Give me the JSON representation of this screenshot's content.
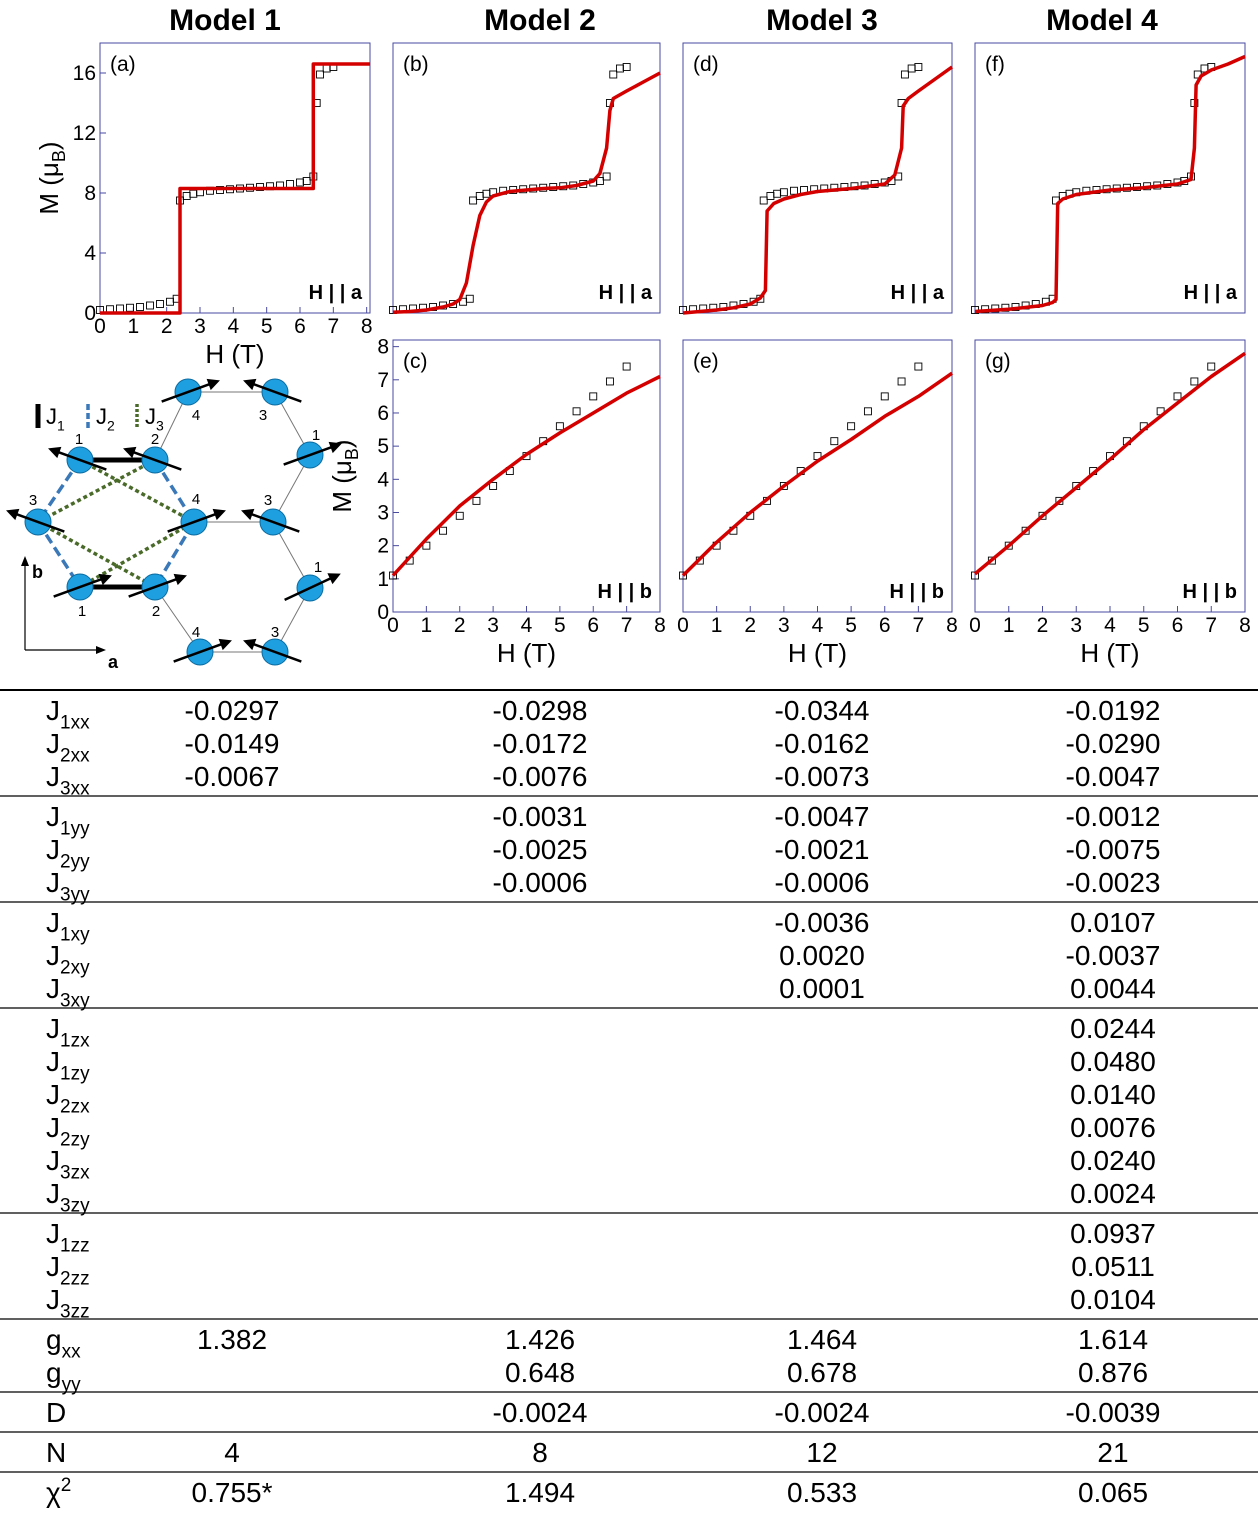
{
  "column_headers": [
    "Model 1",
    "Model 2",
    "Model 3",
    "Model 4"
  ],
  "chart_data": [
    {
      "type": "line",
      "panel_label": "(a)",
      "annotation": "H | | a",
      "xlabel": "H (T)",
      "ylabel": [
        "M (μ",
        "B",
        ")"
      ],
      "xlim": [
        0,
        8.1
      ],
      "ylim": [
        0,
        18
      ],
      "xticks": [
        0,
        1,
        2,
        3,
        4,
        5,
        6,
        7,
        8
      ],
      "yticks": [
        0,
        4,
        8,
        12,
        16
      ],
      "series": [
        {
          "color": "#000000",
          "marker": "square",
          "x": [
            0,
            0.3,
            0.6,
            0.9,
            1.2,
            1.5,
            1.8,
            2.1,
            2.3,
            2.4,
            2.6,
            2.8,
            3.0,
            3.3,
            3.6,
            3.9,
            4.2,
            4.5,
            4.8,
            5.1,
            5.4,
            5.7,
            6.0,
            6.2,
            6.4,
            6.5,
            6.6,
            6.8,
            7.0
          ],
          "values": [
            0.2,
            0.25,
            0.3,
            0.35,
            0.4,
            0.5,
            0.6,
            0.75,
            0.95,
            7.5,
            7.8,
            7.95,
            8.05,
            8.15,
            8.2,
            8.25,
            8.3,
            8.35,
            8.4,
            8.45,
            8.5,
            8.6,
            8.7,
            8.8,
            9.1,
            14.0,
            15.9,
            16.3,
            16.4
          ]
        },
        {
          "color": "#d40000",
          "x": [
            0,
            2.4,
            2.4,
            6.4,
            6.4,
            8.1
          ],
          "values": [
            0,
            0,
            8.3,
            8.3,
            16.6,
            16.6
          ]
        }
      ]
    },
    {
      "type": "line",
      "panel_label": "(b)",
      "annotation": "H | | a",
      "xlim": [
        0,
        8
      ],
      "ylim": [
        0,
        18
      ],
      "series": [
        {
          "color": "#000000",
          "marker": "square",
          "x": [
            0,
            0.3,
            0.6,
            0.9,
            1.2,
            1.5,
            1.8,
            2.1,
            2.3,
            2.4,
            2.6,
            2.8,
            3.0,
            3.3,
            3.6,
            3.9,
            4.2,
            4.5,
            4.8,
            5.1,
            5.4,
            5.7,
            6.0,
            6.2,
            6.4,
            6.5,
            6.6,
            6.8,
            7.0
          ],
          "values": [
            0.2,
            0.25,
            0.3,
            0.35,
            0.4,
            0.5,
            0.6,
            0.75,
            0.95,
            7.5,
            7.8,
            7.95,
            8.05,
            8.15,
            8.2,
            8.25,
            8.3,
            8.35,
            8.4,
            8.45,
            8.5,
            8.6,
            8.7,
            8.8,
            9.1,
            14.0,
            15.9,
            16.3,
            16.4
          ]
        },
        {
          "color": "#d40000",
          "x": [
            0,
            0.5,
            1,
            1.5,
            1.8,
            2.0,
            2.2,
            2.4,
            2.6,
            2.8,
            3,
            3.5,
            4,
            4.5,
            5,
            5.5,
            6,
            6.2,
            6.4,
            6.5,
            6.6,
            7,
            7.5,
            8
          ],
          "values": [
            0.05,
            0.1,
            0.2,
            0.4,
            0.6,
            0.9,
            2.0,
            4.5,
            6.5,
            7.4,
            7.8,
            8.1,
            8.2,
            8.3,
            8.35,
            8.5,
            8.8,
            9.3,
            11,
            13.5,
            14.3,
            14.8,
            15.4,
            16.0
          ]
        }
      ]
    },
    {
      "type": "line",
      "panel_label": "(c)",
      "annotation": "H | | b",
      "xlabel": "H (T)",
      "ylabel": [
        "M (μ",
        "B",
        ")"
      ],
      "xlim": [
        0,
        8
      ],
      "ylim": [
        0,
        8.2
      ],
      "xticks": [
        0,
        1,
        2,
        3,
        4,
        5,
        6,
        7,
        8
      ],
      "yticks": [
        0,
        1,
        2,
        3,
        4,
        5,
        6,
        7,
        8
      ],
      "series": [
        {
          "color": "#000000",
          "marker": "square",
          "x": [
            0,
            0.5,
            1,
            1.5,
            2,
            2.5,
            3,
            3.5,
            4,
            4.5,
            5,
            5.5,
            6,
            6.5,
            7
          ],
          "values": [
            1.1,
            1.55,
            2.0,
            2.45,
            2.9,
            3.35,
            3.8,
            4.25,
            4.7,
            5.15,
            5.6,
            6.05,
            6.5,
            6.95,
            7.4
          ]
        },
        {
          "color": "#d40000",
          "x": [
            0,
            1,
            2,
            3,
            4,
            5,
            6,
            7,
            8
          ],
          "values": [
            1.1,
            2.2,
            3.2,
            4.0,
            4.75,
            5.4,
            6.0,
            6.6,
            7.1
          ]
        }
      ]
    },
    {
      "type": "line",
      "panel_label": "(d)",
      "annotation": "H | | a",
      "xlim": [
        0,
        8
      ],
      "ylim": [
        0,
        18
      ],
      "series": [
        {
          "color": "#000000",
          "marker": "square",
          "x": [
            0,
            0.3,
            0.6,
            0.9,
            1.2,
            1.5,
            1.8,
            2.1,
            2.3,
            2.4,
            2.6,
            2.8,
            3.0,
            3.3,
            3.6,
            3.9,
            4.2,
            4.5,
            4.8,
            5.1,
            5.4,
            5.7,
            6.0,
            6.2,
            6.4,
            6.5,
            6.6,
            6.8,
            7.0
          ],
          "values": [
            0.2,
            0.25,
            0.3,
            0.35,
            0.4,
            0.5,
            0.6,
            0.75,
            0.95,
            7.5,
            7.8,
            7.95,
            8.05,
            8.15,
            8.2,
            8.25,
            8.3,
            8.35,
            8.4,
            8.45,
            8.5,
            8.6,
            8.7,
            8.8,
            9.1,
            14.0,
            15.9,
            16.3,
            16.4
          ]
        },
        {
          "color": "#d40000",
          "x": [
            0,
            1,
            1.5,
            2,
            2.3,
            2.45,
            2.5,
            2.7,
            3,
            3.5,
            4,
            5,
            6,
            6.3,
            6.5,
            6.55,
            6.7,
            7,
            7.5,
            8
          ],
          "values": [
            0,
            0.2,
            0.35,
            0.6,
            1.0,
            1.5,
            6.8,
            7.3,
            7.6,
            7.9,
            8.1,
            8.3,
            8.6,
            9.2,
            11,
            13.8,
            14.3,
            14.8,
            15.6,
            16.4
          ]
        }
      ]
    },
    {
      "type": "line",
      "panel_label": "(e)",
      "annotation": "H | | b",
      "xlabel": "H (T)",
      "xlim": [
        0,
        8
      ],
      "ylim": [
        0,
        8.2
      ],
      "xticks": [
        0,
        1,
        2,
        3,
        4,
        5,
        6,
        7,
        8
      ],
      "series": [
        {
          "color": "#000000",
          "marker": "square",
          "x": [
            0,
            0.5,
            1,
            1.5,
            2,
            2.5,
            3,
            3.5,
            4,
            4.5,
            5,
            5.5,
            6,
            6.5,
            7
          ],
          "values": [
            1.1,
            1.55,
            2.0,
            2.45,
            2.9,
            3.35,
            3.8,
            4.25,
            4.7,
            5.15,
            5.6,
            6.05,
            6.5,
            6.95,
            7.4
          ]
        },
        {
          "color": "#d40000",
          "x": [
            0,
            1,
            2,
            3,
            4,
            5,
            6,
            7,
            8
          ],
          "values": [
            1.1,
            2.1,
            3.0,
            3.8,
            4.55,
            5.2,
            5.9,
            6.5,
            7.2
          ]
        }
      ]
    },
    {
      "type": "line",
      "panel_label": "(f)",
      "annotation": "H | | a",
      "xlim": [
        0,
        8
      ],
      "ylim": [
        0,
        18
      ],
      "series": [
        {
          "color": "#000000",
          "marker": "square",
          "x": [
            0,
            0.3,
            0.6,
            0.9,
            1.2,
            1.5,
            1.8,
            2.1,
            2.3,
            2.4,
            2.6,
            2.8,
            3.0,
            3.3,
            3.6,
            3.9,
            4.2,
            4.5,
            4.8,
            5.1,
            5.4,
            5.7,
            6.0,
            6.2,
            6.4,
            6.5,
            6.6,
            6.8,
            7.0
          ],
          "values": [
            0.2,
            0.25,
            0.3,
            0.35,
            0.4,
            0.5,
            0.6,
            0.75,
            0.95,
            7.5,
            7.8,
            7.95,
            8.05,
            8.15,
            8.2,
            8.25,
            8.3,
            8.35,
            8.4,
            8.45,
            8.5,
            8.6,
            8.7,
            8.8,
            9.1,
            14.0,
            15.9,
            16.3,
            16.4
          ]
        },
        {
          "color": "#d40000",
          "x": [
            0,
            1,
            2,
            2.3,
            2.4,
            2.45,
            2.6,
            3,
            4,
            5,
            6,
            6.4,
            6.5,
            6.55,
            6.7,
            7,
            7.5,
            8
          ],
          "values": [
            0.1,
            0.25,
            0.5,
            0.7,
            0.9,
            7.3,
            7.6,
            7.9,
            8.2,
            8.35,
            8.6,
            8.9,
            11,
            15.2,
            15.8,
            16.2,
            16.6,
            17.1
          ]
        }
      ]
    },
    {
      "type": "line",
      "panel_label": "(g)",
      "annotation": "H | | b",
      "xlabel": "H (T)",
      "xlim": [
        0,
        8
      ],
      "ylim": [
        0,
        8.2
      ],
      "xticks": [
        0,
        1,
        2,
        3,
        4,
        5,
        6,
        7,
        8
      ],
      "series": [
        {
          "color": "#000000",
          "marker": "square",
          "x": [
            0,
            0.5,
            1,
            1.5,
            2,
            2.5,
            3,
            3.5,
            4,
            4.5,
            5,
            5.5,
            6,
            6.5,
            7
          ],
          "values": [
            1.1,
            1.55,
            2.0,
            2.45,
            2.9,
            3.35,
            3.8,
            4.25,
            4.7,
            5.15,
            5.6,
            6.05,
            6.5,
            6.95,
            7.4
          ]
        },
        {
          "color": "#d40000",
          "x": [
            0,
            1,
            2,
            3,
            4,
            5,
            6,
            7,
            8
          ],
          "values": [
            1.15,
            2.0,
            2.9,
            3.75,
            4.6,
            5.5,
            6.3,
            7.1,
            7.8
          ]
        }
      ]
    }
  ],
  "diagram": {
    "bond_labels": [
      {
        "base": "J",
        "sub": "1"
      },
      {
        "base": "J",
        "sub": "2"
      },
      {
        "base": "J",
        "sub": "3"
      }
    ],
    "site_labels": [
      "4",
      "3",
      "1",
      "2",
      "1",
      "3",
      "4",
      "3",
      "1",
      "1",
      "2",
      "4",
      "3"
    ],
    "axis_labels": [
      "b",
      "a"
    ]
  },
  "table": {
    "groups": [
      [
        {
          "label": {
            "base": "J",
            "sub": "1xx"
          },
          "values": [
            "-0.0297",
            "-0.0298",
            "-0.0344",
            "-0.0192"
          ]
        },
        {
          "label": {
            "base": "J",
            "sub": "2xx"
          },
          "values": [
            "-0.0149",
            "-0.0172",
            "-0.0162",
            "-0.0290"
          ]
        },
        {
          "label": {
            "base": "J",
            "sub": "3xx"
          },
          "values": [
            "-0.0067",
            "-0.0076",
            "-0.0073",
            "-0.0047"
          ]
        }
      ],
      [
        {
          "label": {
            "base": "J",
            "sub": "1yy"
          },
          "values": [
            null,
            "-0.0031",
            "-0.0047",
            "-0.0012"
          ]
        },
        {
          "label": {
            "base": "J",
            "sub": "2yy"
          },
          "values": [
            null,
            "-0.0025",
            "-0.0021",
            "-0.0075"
          ]
        },
        {
          "label": {
            "base": "J",
            "sub": "3yy"
          },
          "values": [
            null,
            "-0.0006",
            "-0.0006",
            "-0.0023"
          ]
        }
      ],
      [
        {
          "label": {
            "base": "J",
            "sub": "1xy"
          },
          "values": [
            null,
            null,
            "-0.0036",
            "0.0107"
          ]
        },
        {
          "label": {
            "base": "J",
            "sub": "2xy"
          },
          "values": [
            null,
            null,
            "0.0020",
            "-0.0037"
          ]
        },
        {
          "label": {
            "base": "J",
            "sub": "3xy"
          },
          "values": [
            null,
            null,
            "0.0001",
            "0.0044"
          ]
        }
      ],
      [
        {
          "label": {
            "base": "J",
            "sub": "1zx"
          },
          "values": [
            null,
            null,
            null,
            "0.0244"
          ]
        },
        {
          "label": {
            "base": "J",
            "sub": "1zy"
          },
          "values": [
            null,
            null,
            null,
            "0.0480"
          ]
        },
        {
          "label": {
            "base": "J",
            "sub": "2zx"
          },
          "values": [
            null,
            null,
            null,
            "0.0140"
          ]
        },
        {
          "label": {
            "base": "J",
            "sub": "2zy"
          },
          "values": [
            null,
            null,
            null,
            "0.0076"
          ]
        },
        {
          "label": {
            "base": "J",
            "sub": "3zx"
          },
          "values": [
            null,
            null,
            null,
            "0.0240"
          ]
        },
        {
          "label": {
            "base": "J",
            "sub": "3zy"
          },
          "values": [
            null,
            null,
            null,
            "0.0024"
          ]
        }
      ],
      [
        {
          "label": {
            "base": "J",
            "sub": "1zz"
          },
          "values": [
            null,
            null,
            null,
            "0.0937"
          ]
        },
        {
          "label": {
            "base": "J",
            "sub": "2zz"
          },
          "values": [
            null,
            null,
            null,
            "0.0511"
          ]
        },
        {
          "label": {
            "base": "J",
            "sub": "3zz"
          },
          "values": [
            null,
            null,
            null,
            "0.0104"
          ]
        }
      ],
      [
        {
          "label": {
            "base": "g",
            "sub": "xx"
          },
          "values": [
            "1.382",
            "1.426",
            "1.464",
            "1.614"
          ]
        },
        {
          "label": {
            "base": "g",
            "sub": "yy"
          },
          "values": [
            null,
            "0.648",
            "0.678",
            "0.876"
          ]
        }
      ],
      [
        {
          "label": {
            "base": "D"
          },
          "values": [
            null,
            "-0.0024",
            "-0.0024",
            "-0.0039"
          ]
        }
      ],
      [
        {
          "label": {
            "base": "N"
          },
          "values": [
            "4",
            "8",
            "12",
            "21"
          ]
        }
      ],
      [
        {
          "label": {
            "base": "χ",
            "sup": "2"
          },
          "values": [
            "0.755*",
            "1.494",
            "0.533",
            "0.065"
          ]
        }
      ]
    ]
  }
}
